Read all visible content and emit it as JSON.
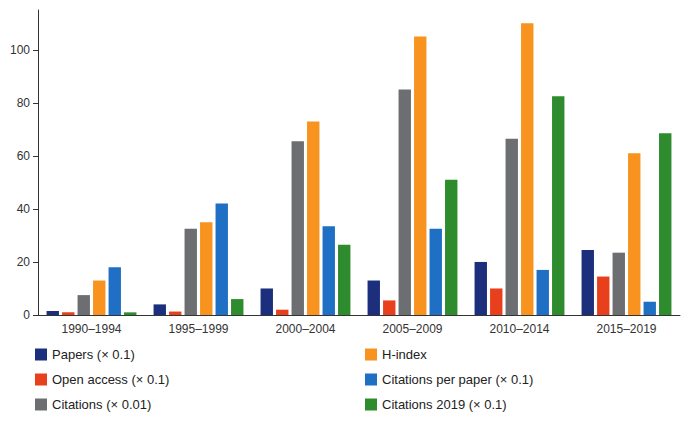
{
  "chart_data": {
    "type": "bar",
    "categories": [
      "1990–1994",
      "1995–1999",
      "2000–2004",
      "2005–2009",
      "2010–2014",
      "2015–2019"
    ],
    "series": [
      {
        "name": "Papers (× 0.1)",
        "color": "#1b2f7c",
        "values": [
          1.5,
          4,
          10,
          13,
          20,
          24.5
        ]
      },
      {
        "name": "Open access (× 0.1)",
        "color": "#e8401c",
        "values": [
          1,
          1.3,
          2,
          5.5,
          10,
          14.5
        ]
      },
      {
        "name": "Citations (× 0.01)",
        "color": "#6d6e71",
        "values": [
          7.5,
          32.5,
          65.5,
          85,
          66.5,
          23.5
        ]
      },
      {
        "name": "H-index",
        "color": "#f7931e",
        "values": [
          13,
          35,
          73,
          105,
          110,
          61
        ]
      },
      {
        "name": "Citations per paper (× 0.1)",
        "color": "#1f6fc5",
        "values": [
          18,
          42,
          33.5,
          32.5,
          17,
          5
        ]
      },
      {
        "name": "Citations 2019 (× 0.1)",
        "color": "#2e8b2e",
        "values": [
          1,
          6,
          26.5,
          51,
          82.5,
          68.5
        ]
      }
    ],
    "ylim": [
      0,
      115
    ],
    "yticks": [
      0,
      20,
      40,
      60,
      80,
      100
    ],
    "grid": false,
    "legend": "bottom"
  }
}
